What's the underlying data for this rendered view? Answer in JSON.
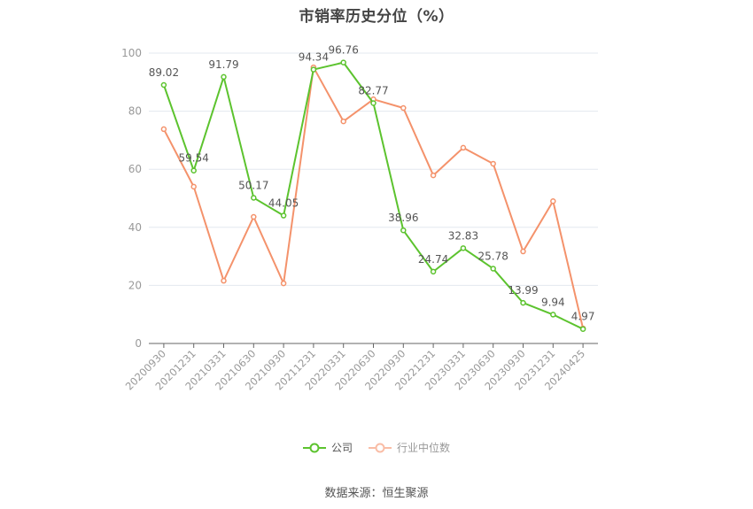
{
  "title": "市销率历史分位（%）",
  "source": "数据来源：恒生聚源",
  "legend": [
    {
      "name": "公司",
      "color": "#5cc32e"
    },
    {
      "name": "行业中位数",
      "color": "#f4926b"
    }
  ],
  "colors": {
    "company": "#5cc32e",
    "industry": "#f4926b",
    "grid": "#e3e8ef",
    "axis": "#666666",
    "tick_text": "#999999",
    "label_text": "#555555"
  },
  "chart_data": {
    "type": "line",
    "title": "市销率历史分位（%）",
    "xlabel": "",
    "ylabel": "",
    "ylim": [
      0,
      100
    ],
    "yticks": [
      0,
      20,
      40,
      60,
      80,
      100
    ],
    "grid": true,
    "legend_position": "bottom",
    "categories": [
      "20200930",
      "20201231",
      "20210331",
      "20210630",
      "20210930",
      "20211231",
      "20220331",
      "20220630",
      "20220930",
      "20221231",
      "20230331",
      "20230630",
      "20230930",
      "20231231",
      "20240425"
    ],
    "series": [
      {
        "name": "公司",
        "values": [
          89.02,
          59.54,
          91.79,
          50.17,
          44.05,
          94.34,
          96.76,
          82.77,
          38.96,
          24.74,
          32.83,
          25.78,
          13.99,
          9.94,
          4.97
        ],
        "labels_shown": true
      },
      {
        "name": "行业中位数",
        "values": [
          73.8,
          54.0,
          21.6,
          43.6,
          20.7,
          95.1,
          76.5,
          84.1,
          81.1,
          57.9,
          67.4,
          61.9,
          31.7,
          49.0,
          5.2
        ],
        "labels_shown": false
      }
    ]
  }
}
